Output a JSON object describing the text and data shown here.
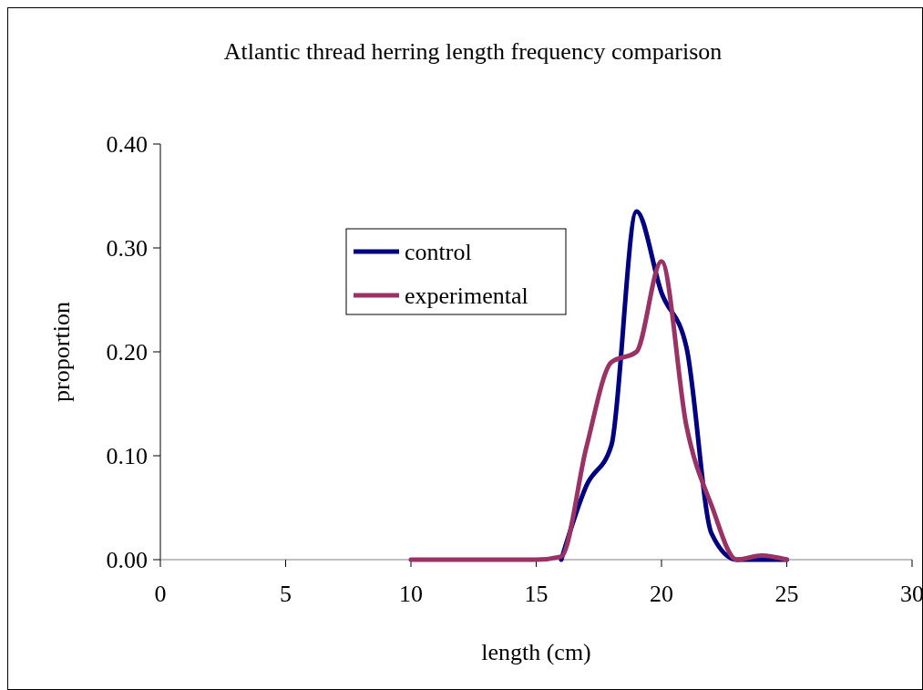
{
  "chart_data": {
    "type": "line",
    "title": "Atlantic thread herring length frequency comparison",
    "xlabel": "length (cm)",
    "ylabel": "proportion",
    "x": [
      10,
      11,
      12,
      13,
      14,
      15,
      16,
      17,
      18,
      19,
      20,
      21,
      22,
      23,
      24,
      25
    ],
    "series": [
      {
        "name": "control",
        "color": "#000080",
        "values": [
          null,
          null,
          null,
          null,
          null,
          null,
          0,
          0.071,
          0.11,
          0.335,
          0.257,
          0.204,
          0.025,
          0,
          0,
          0
        ]
      },
      {
        "name": "experimental",
        "color": "#993366",
        "values": [
          0,
          0,
          0,
          0,
          0,
          0,
          0.003,
          0.108,
          0.19,
          0.2,
          0.287,
          0.128,
          0.052,
          0,
          0.004,
          0
        ]
      }
    ],
    "xlim": [
      0,
      30
    ],
    "xticks": [
      0,
      5,
      10,
      15,
      20,
      25,
      30
    ],
    "ylim": [
      0,
      0.4
    ],
    "yticks": [
      {
        "value": 0,
        "label": "0.00"
      },
      {
        "value": 0.1,
        "label": "0.10"
      },
      {
        "value": 0.2,
        "label": "0.20"
      },
      {
        "value": 0.3,
        "label": "0.30"
      },
      {
        "value": 0.4,
        "label": "0.40"
      }
    ],
    "legend": "top",
    "grid": false,
    "marker": "none",
    "line_style": "solid"
  }
}
